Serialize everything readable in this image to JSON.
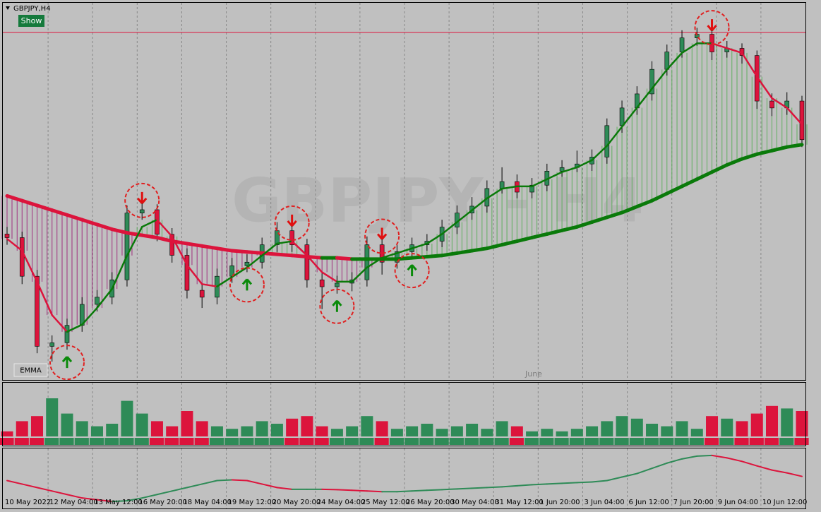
{
  "chart_data": {
    "type": "candlestick",
    "symbol": "GBPJPY,H4",
    "watermark": "GBPJPY - H4",
    "show_button": "Show",
    "indicator_label": "EMMA",
    "month_label": "June",
    "x_labels": [
      "10 May 2022",
      "12 May 04:00",
      "13 May 12:00",
      "16 May 20:00",
      "18 May 04:00",
      "19 May 12:00",
      "20 May 20:00",
      "24 May 04:00",
      "25 May 12:00",
      "26 May 20:00",
      "30 May 04:00",
      "31 May 12:00",
      "1 Jun 20:00",
      "3 Jun 04:00",
      "6 Jun 12:00",
      "7 Jun 20:00",
      "9 Jun 04:00",
      "10 Jun 12:00"
    ],
    "open": [
      160.3,
      160.15,
      158.53,
      155.59,
      155.74,
      156.47,
      157.35,
      157.65,
      158.38,
      161.18,
      161.32,
      160.29,
      159.41,
      157.94,
      157.65,
      158.53,
      158.97,
      159.12,
      159.85,
      160.44,
      159.85,
      158.38,
      158.09,
      158.24,
      158.38,
      159.85,
      159.12,
      159.56,
      159.85,
      160.0,
      160.59,
      161.18,
      161.47,
      162.21,
      162.5,
      162.06,
      162.35,
      162.94,
      163.09,
      163.24,
      163.53,
      164.85,
      165.59,
      166.18,
      167.21,
      167.94,
      168.53,
      168.68,
      167.94,
      168.09,
      167.79,
      165.88,
      165.59,
      165.88
    ],
    "high": [
      160.6,
      160.4,
      158.8,
      156.05,
      156.75,
      157.65,
      157.95,
      158.7,
      161.5,
      161.65,
      161.55,
      160.55,
      159.7,
      158.25,
      158.85,
      159.3,
      159.45,
      160.15,
      160.8,
      160.7,
      160.1,
      158.65,
      158.55,
      158.7,
      160.2,
      160.15,
      159.85,
      160.15,
      160.3,
      160.9,
      161.5,
      161.85,
      162.55,
      163.1,
      162.8,
      162.65,
      163.25,
      163.4,
      163.8,
      163.85,
      165.15,
      165.9,
      166.5,
      167.55,
      168.25,
      168.85,
      168.95,
      168.9,
      168.4,
      168.3,
      168.0,
      166.2,
      166.25,
      166.1
    ],
    "low": [
      159.85,
      158.2,
      155.3,
      154.95,
      155.45,
      156.2,
      157.05,
      157.35,
      158.1,
      160.9,
      160.0,
      159.1,
      157.6,
      157.2,
      157.35,
      158.25,
      158.7,
      158.85,
      159.55,
      159.55,
      158.05,
      157.15,
      157.8,
      157.9,
      158.1,
      158.6,
      158.85,
      159.3,
      159.6,
      159.75,
      160.3,
      160.9,
      161.2,
      162.0,
      161.8,
      161.8,
      162.1,
      162.7,
      162.9,
      162.95,
      163.25,
      164.55,
      165.3,
      165.9,
      166.95,
      167.7,
      168.2,
      167.6,
      167.7,
      167.45,
      165.55,
      165.25,
      165.3,
      163.95
    ],
    "close": [
      160.15,
      158.53,
      155.59,
      155.74,
      156.47,
      157.35,
      157.65,
      158.38,
      161.18,
      161.32,
      160.29,
      159.41,
      157.94,
      157.65,
      158.53,
      158.97,
      159.12,
      159.85,
      160.44,
      159.85,
      158.38,
      158.09,
      158.24,
      158.38,
      159.85,
      159.12,
      159.56,
      159.85,
      160.0,
      160.59,
      161.18,
      161.47,
      162.21,
      162.5,
      162.06,
      162.35,
      162.94,
      163.09,
      163.24,
      163.53,
      164.85,
      165.59,
      166.18,
      167.21,
      167.94,
      168.53,
      168.68,
      167.94,
      168.09,
      167.79,
      165.88,
      165.59,
      165.88,
      164.26
    ],
    "ylim": [
      154.18,
      170
    ],
    "colors": {
      "up": "#2e8b57",
      "down": "#dc143c"
    },
    "fast_ma": {
      "values": [
        160.1,
        159.6,
        158.3,
        156.9,
        156.2,
        156.5,
        157.2,
        158.0,
        159.4,
        160.6,
        160.9,
        160.2,
        159.0,
        158.2,
        158.1,
        158.5,
        158.9,
        159.4,
        159.9,
        160.0,
        159.4,
        158.7,
        158.3,
        158.3,
        158.9,
        159.3,
        159.5,
        159.7,
        159.9,
        160.3,
        160.8,
        161.3,
        161.8,
        162.2,
        162.3,
        162.3,
        162.6,
        162.9,
        163.1,
        163.4,
        164.0,
        164.8,
        165.6,
        166.4,
        167.2,
        167.9,
        168.3,
        168.3,
        168.1,
        167.9,
        166.9,
        166.0,
        165.6,
        164.9
      ],
      "up_color": "#0a7a0a",
      "down_color": "#dc143c"
    },
    "slow_ma": {
      "values": [
        161.9,
        161.7,
        161.5,
        161.3,
        161.1,
        160.9,
        160.7,
        160.5,
        160.35,
        160.25,
        160.15,
        160.0,
        159.9,
        159.8,
        159.7,
        159.6,
        159.55,
        159.5,
        159.45,
        159.4,
        159.35,
        159.3,
        159.3,
        159.25,
        159.25,
        159.25,
        159.25,
        159.3,
        159.35,
        159.4,
        159.5,
        159.6,
        159.7,
        159.85,
        160.0,
        160.15,
        160.3,
        160.45,
        160.6,
        160.8,
        161.0,
        161.2,
        161.45,
        161.7,
        162.0,
        162.3,
        162.6,
        162.9,
        163.2,
        163.45,
        163.65,
        163.8,
        163.95,
        164.05
      ]
    },
    "resistance": 168.76,
    "buy_signals": [
      4,
      16,
      22,
      27
    ],
    "sell_signals": [
      9,
      19,
      25,
      47
    ],
    "volume": {
      "values": [
        10,
        30,
        40,
        75,
        45,
        30,
        20,
        25,
        70,
        45,
        30,
        20,
        50,
        30,
        20,
        15,
        20,
        30,
        25,
        35,
        40,
        20,
        15,
        20,
        40,
        30,
        15,
        20,
        25,
        15,
        20,
        25,
        15,
        30,
        20,
        10,
        15,
        10,
        15,
        20,
        30,
        40,
        35,
        25,
        20,
        30,
        15,
        40,
        35,
        30,
        45,
        60,
        55,
        50
      ],
      "ylim": [
        0,
        100
      ]
    },
    "oscillator": {
      "values": [
        0.2,
        0.1,
        0,
        -0.1,
        -0.2,
        -0.3,
        -0.35,
        -0.4,
        -0.38,
        -0.3,
        -0.2,
        -0.1,
        0.0,
        0.1,
        0.2,
        0.22,
        0.2,
        0.1,
        0.0,
        -0.05,
        -0.05,
        -0.05,
        -0.06,
        -0.08,
        -0.1,
        -0.12,
        -0.12,
        -0.1,
        -0.08,
        -0.06,
        -0.04,
        -0.02,
        0.0,
        0.02,
        0.05,
        0.08,
        0.1,
        0.12,
        0.14,
        0.16,
        0.2,
        0.3,
        0.4,
        0.55,
        0.7,
        0.82,
        0.9,
        0.92,
        0.85,
        0.75,
        0.62,
        0.5,
        0.42,
        0.32
      ],
      "ylim": [
        -0.6,
        1.1
      ]
    },
    "grid": true
  }
}
